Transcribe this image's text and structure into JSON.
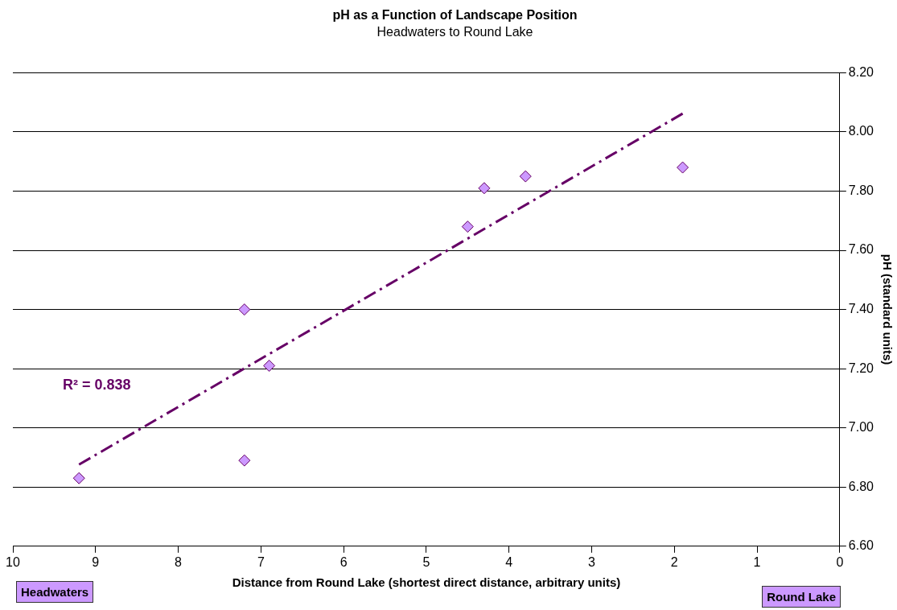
{
  "chart_data": {
    "type": "scatter",
    "title": "pH as a Function of Landscape Position",
    "subtitle": "Headwaters to Round Lake",
    "xlabel": "Distance from Round Lake (shortest direct distance, arbitrary units)",
    "ylabel": "pH (standard units)",
    "xlim": [
      10,
      0
    ],
    "xticks": [
      10,
      9,
      8,
      7,
      6,
      5,
      4,
      3,
      2,
      1,
      0
    ],
    "ylim": [
      6.6,
      8.2
    ],
    "yticks": [
      {
        "value": 6.6,
        "label": "6.60"
      },
      {
        "value": 6.8,
        "label": "6.80"
      },
      {
        "value": 7.0,
        "label": "7.00"
      },
      {
        "value": 7.2,
        "label": "7.20"
      },
      {
        "value": 7.4,
        "label": "7.40"
      },
      {
        "value": 7.6,
        "label": "7.60"
      },
      {
        "value": 7.8,
        "label": "7.80"
      },
      {
        "value": 8.0,
        "label": "8.00"
      },
      {
        "value": 8.2,
        "label": "8.20"
      }
    ],
    "grid": "y",
    "legend": false,
    "marker": "diamond",
    "series": [
      {
        "type": "scatter",
        "color": "#cc99ff",
        "x": [
          9.2,
          7.2,
          7.2,
          6.9,
          4.5,
          4.3,
          3.8,
          1.9
        ],
        "values": [
          6.83,
          7.4,
          6.89,
          7.21,
          7.68,
          7.81,
          7.85,
          7.88
        ]
      },
      {
        "type": "line",
        "color": "#660066",
        "line_style": "dashed",
        "marker": "none",
        "x": [
          9.2,
          1.9
        ],
        "values": [
          6.876,
          8.062
        ]
      }
    ],
    "annotations": [
      "R² = 0.838",
      "Headwaters",
      "Round Lake"
    ]
  }
}
